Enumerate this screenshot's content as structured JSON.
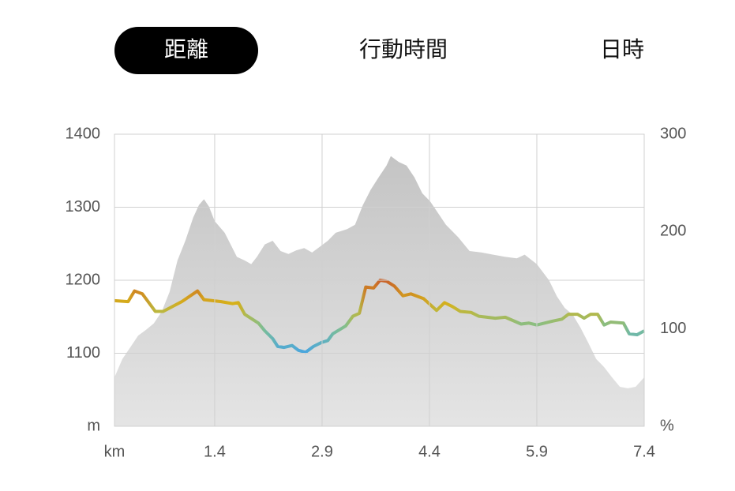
{
  "tabs": [
    {
      "label": "距離",
      "selected": true
    },
    {
      "label": "行動時間",
      "selected": false
    },
    {
      "label": "日時",
      "selected": false
    }
  ],
  "chart_data": {
    "type": "line",
    "xlim": [
      0,
      7.4
    ],
    "xticks": [
      {
        "value": 0,
        "label": "km"
      },
      1.4,
      2.9,
      4.4,
      5.9,
      7.4
    ],
    "ylim": [
      1000,
      1400
    ],
    "yticks": [
      {
        "value": 1000,
        "label": "m"
      },
      1100,
      1200,
      1300,
      1400
    ],
    "y2lim": [
      0,
      300
    ],
    "y2ticks": [
      {
        "value": 0,
        "label": "%"
      },
      100,
      200,
      300
    ],
    "grid": true,
    "series": [
      {
        "kind": "area",
        "axis": "y",
        "color": "#c4c4c4",
        "x": [
          0,
          0.11,
          0.22,
          0.33,
          0.44,
          0.55,
          0.66,
          0.77,
          0.88,
          0.99,
          1.1,
          1.18,
          1.25,
          1.32,
          1.4,
          1.54,
          1.71,
          1.82,
          1.91,
          1.99,
          2.1,
          2.21,
          2.32,
          2.43,
          2.54,
          2.65,
          2.76,
          2.87,
          2.98,
          3.09,
          3.25,
          3.36,
          3.47,
          3.58,
          3.69,
          3.8,
          3.86,
          3.97,
          4.08,
          4.19,
          4.3,
          4.41,
          4.52,
          4.63,
          4.8,
          4.96,
          5.13,
          5.29,
          5.46,
          5.62,
          5.73,
          5.9,
          6.07,
          6.18,
          6.29,
          6.4,
          6.51,
          6.62,
          6.73,
          6.84,
          6.95,
          7.06,
          7.17,
          7.28,
          7.4
        ],
        "values": [
          1067,
          1092,
          1108,
          1124,
          1132,
          1141,
          1157,
          1184,
          1227,
          1254,
          1286,
          1303,
          1311,
          1301,
          1281,
          1265,
          1232,
          1227,
          1222,
          1232,
          1249,
          1254,
          1240,
          1236,
          1241,
          1244,
          1238,
          1246,
          1254,
          1265,
          1270,
          1276,
          1303,
          1324,
          1341,
          1357,
          1370,
          1362,
          1357,
          1341,
          1319,
          1308,
          1292,
          1276,
          1259,
          1240,
          1238,
          1235,
          1232,
          1230,
          1235,
          1222,
          1200,
          1178,
          1162,
          1153,
          1135,
          1114,
          1092,
          1081,
          1067,
          1054,
          1052,
          1054,
          1067
        ]
      },
      {
        "kind": "line",
        "axis": "y2",
        "colors": [
          "#4aa6de",
          "#7dbf95",
          "#d6b41a",
          "#c9622a"
        ],
        "x": [
          0,
          0.19,
          0.28,
          0.39,
          0.57,
          0.68,
          0.94,
          1.16,
          1.25,
          1.49,
          1.65,
          1.73,
          1.82,
          2.01,
          2.1,
          2.21,
          2.28,
          2.37,
          2.48,
          2.57,
          2.67,
          2.78,
          2.89,
          2.98,
          3.05,
          3.23,
          3.33,
          3.42,
          3.51,
          3.62,
          3.71,
          3.8,
          3.91,
          4.03,
          4.14,
          4.32,
          4.5,
          4.61,
          4.72,
          4.83,
          4.98,
          5.09,
          5.32,
          5.46,
          5.68,
          5.79,
          5.9,
          6.12,
          6.25,
          6.34,
          6.47,
          6.56,
          6.65,
          6.75,
          6.84,
          6.93,
          7.11,
          7.19,
          7.3,
          7.4
        ],
        "values": [
          129,
          128,
          139,
          136,
          118,
          118,
          128,
          139,
          130,
          128,
          126,
          127,
          115,
          106,
          98,
          90,
          82,
          81,
          83,
          78,
          76,
          82,
          86,
          88,
          95,
          103,
          113,
          116,
          143,
          142,
          150,
          149,
          144,
          134,
          136,
          131,
          119,
          127,
          123,
          118,
          117,
          113,
          111,
          112,
          105,
          106,
          104,
          108,
          110,
          115,
          115,
          111,
          115,
          115,
          104,
          107,
          106,
          95,
          94,
          98
        ]
      }
    ]
  }
}
